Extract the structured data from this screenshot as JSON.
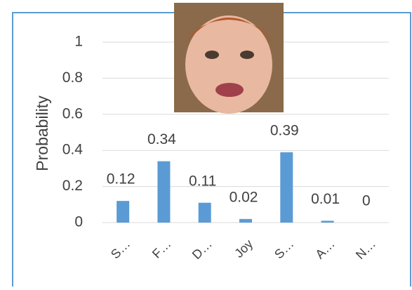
{
  "chart_data": {
    "type": "bar",
    "y_label": "Probability",
    "categories": [
      "S…",
      "F…",
      "D…",
      "Joy",
      "S…",
      "A…",
      "N…"
    ],
    "values": [
      0.12,
      0.34,
      0.11,
      0.02,
      0.39,
      0.01,
      0
    ],
    "color": "#5b9bd5",
    "ylim": [
      0,
      1
    ],
    "yticks": [
      0,
      0.2,
      0.4,
      0.6,
      0.8,
      1
    ],
    "grid": true
  }
}
